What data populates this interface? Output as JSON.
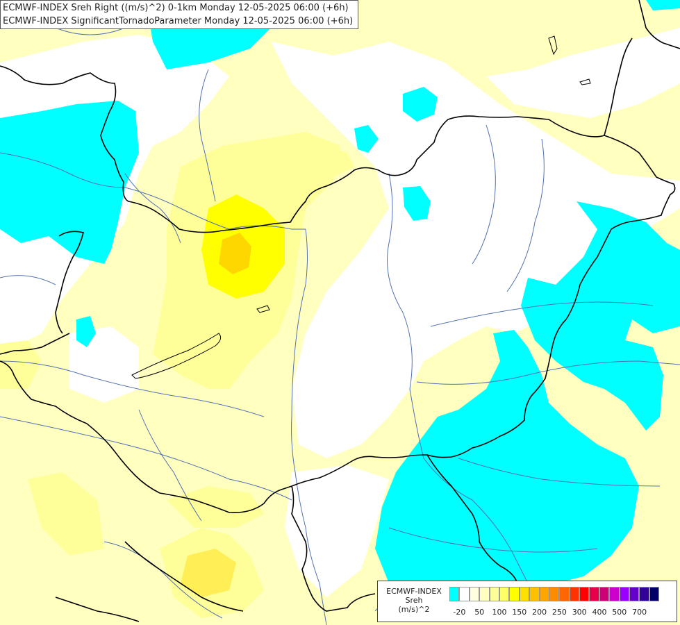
{
  "header": {
    "line1": "ECMWF-INDEX Sreh Right ((m/s)^2) 0-1km Monday 12-05-2025 06:00 (+6h)",
    "line2": "ECMWF-INDEX SignificantTornadoParameter Monday 12-05-2025 06:00 (+6h)"
  },
  "legend": {
    "line1": "ECMWF-INDEX",
    "line2": "Sreh",
    "line3": "(m/s)^2",
    "colors": [
      "#00ffff",
      "#ffffff",
      "#ffffe0",
      "#ffffc0",
      "#ffff99",
      "#ffff66",
      "#ffff00",
      "#ffe000",
      "#ffc000",
      "#ffa500",
      "#ff8c00",
      "#ff6600",
      "#ff3300",
      "#ff0000",
      "#e6004c",
      "#cc0077",
      "#cc00cc",
      "#9900ff",
      "#6600cc",
      "#330099",
      "#000066"
    ],
    "ticks": [
      "-20",
      "50",
      "100",
      "150",
      "200",
      "250",
      "300",
      "400",
      "500",
      "700"
    ]
  },
  "colors": {
    "cyan": "#00ffff",
    "pale_yellow": "#ffffc0",
    "light_yellow": "#ffff99",
    "yellow": "#ffff00",
    "orange_yellow": "#ffd700",
    "borders": "#000000",
    "rivers": "#5070b0"
  }
}
